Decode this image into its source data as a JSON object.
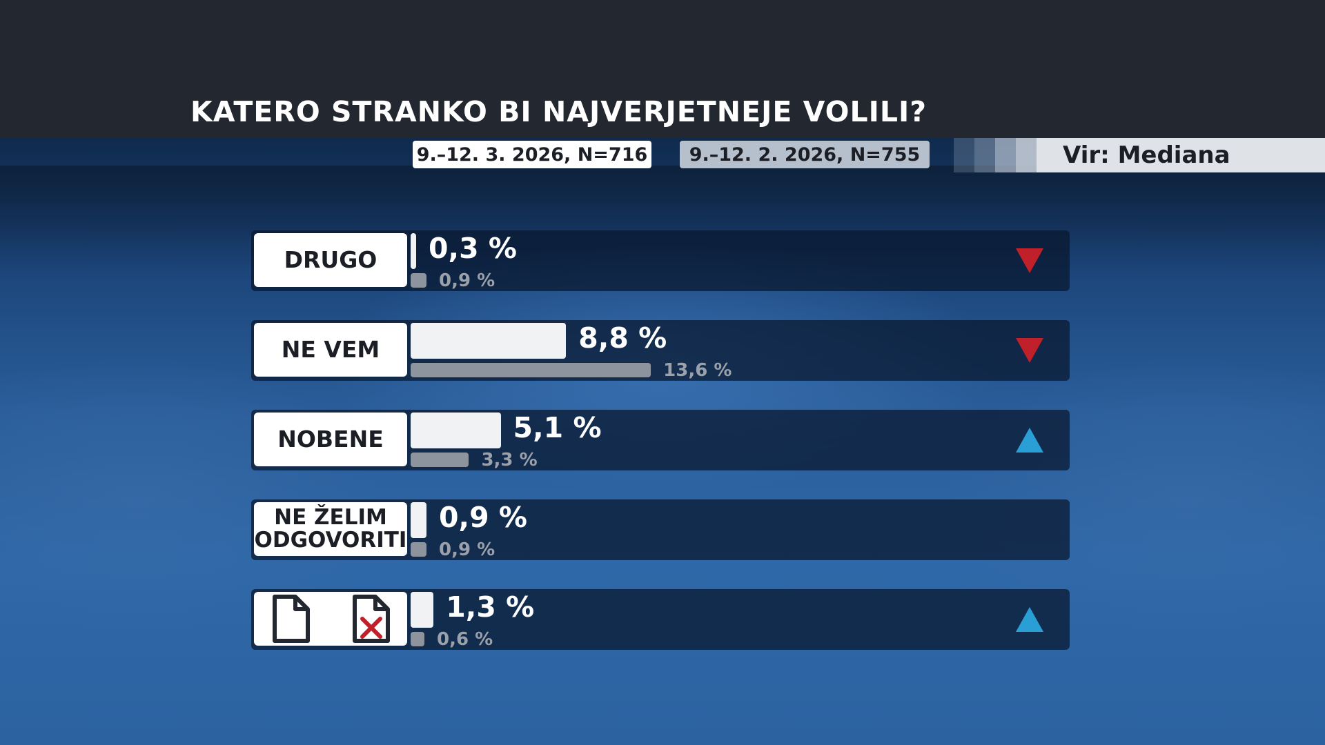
{
  "title": "KATERO STRANKO BI NAJVERJETNEJE VOLILI?",
  "legend": {
    "current": "9.–12. 3. 2026, N=716",
    "previous": "9.–12. 2. 2026, N=755"
  },
  "source": "Vir: Mediana",
  "colors": {
    "header": "#23272f",
    "current_bar": "#f1f2f4",
    "previous_bar": "#8d949e",
    "trend_down": "#c0202a",
    "trend_up": "#2a9fd6"
  },
  "chart_data": {
    "type": "bar",
    "orientation": "horizontal",
    "title": "KATERO STRANKO BI NAJVERJETNEJE VOLILI?",
    "unit": "%",
    "series": [
      {
        "name": "9.–12. 3. 2026, N=716",
        "values": [
          0.3,
          8.8,
          5.1,
          0.9,
          1.3
        ]
      },
      {
        "name": "9.–12. 2. 2026, N=755",
        "values": [
          0.9,
          13.6,
          3.3,
          0.9,
          0.6
        ]
      }
    ],
    "rows": [
      {
        "label": "DRUGO",
        "current": 0.3,
        "previous": 0.9,
        "current_text": "0,3 %",
        "previous_text": "0,9 %",
        "trend": "down"
      },
      {
        "label": "NE VEM",
        "current": 8.8,
        "previous": 13.6,
        "current_text": "8,8 %",
        "previous_text": "13,6 %",
        "trend": "down"
      },
      {
        "label": "NOBENE",
        "current": 5.1,
        "previous": 3.3,
        "current_text": "5,1 %",
        "previous_text": "3,3 %",
        "trend": "up"
      },
      {
        "label": "NE ŽELIM ODGOVORITI",
        "label_lines": [
          "NE ŽELIM",
          "ODGOVORITI"
        ],
        "current": 0.9,
        "previous": 0.9,
        "current_text": "0,9 %",
        "previous_text": "0,9 %",
        "trend": "none"
      },
      {
        "label": "",
        "icons": [
          "blank-ballot-icon",
          "invalid-ballot-icon"
        ],
        "current": 1.3,
        "previous": 0.6,
        "current_text": "1,3 %",
        "previous_text": "0,6 %",
        "trend": "up"
      }
    ],
    "xlim": [
      0,
      20
    ],
    "grid": false,
    "legend_position": "top"
  }
}
